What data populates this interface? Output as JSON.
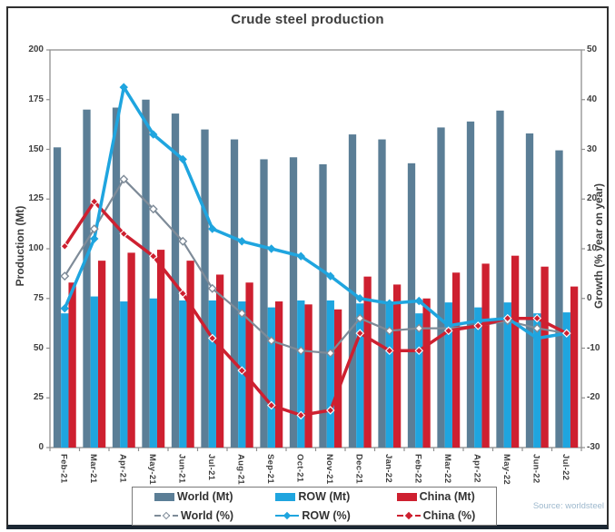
{
  "title": "Crude steel production",
  "source": "Source: worldsteel",
  "axes": {
    "left_label": "Production (Mt)",
    "right_label": "Growth (% year on year)",
    "left_min": 0,
    "left_max": 200,
    "left_step": 25,
    "right_min": -30,
    "right_max": 50,
    "right_step": 10
  },
  "colors": {
    "world": "#5b7e96",
    "row": "#1fa5df",
    "china": "#ce2030",
    "world_line": "#7e8b98",
    "frame": "#8f8f8f",
    "text": "#3f3f3f",
    "source_text": "#9db8cd"
  },
  "chart_data": {
    "type": "bar",
    "subtype": "grouped bars (left axis, Mt) + lines (right axis, % yoy)",
    "title": "Crude steel production",
    "xlabel": "",
    "ylabel": "Production (Mt)",
    "y2label": "Growth (% year on year)",
    "ylim": [
      0,
      200
    ],
    "y2lim": [
      -30,
      50
    ],
    "grid": false,
    "legend_position": "bottom",
    "categories": [
      "Feb-21",
      "Mar-21",
      "Apr-21",
      "May-21",
      "Jun-21",
      "Jul-21",
      "Aug-21",
      "Sep-21",
      "Oct-21",
      "Nov-21",
      "Dec-21",
      "Jan-22",
      "Feb-22",
      "Mar-22",
      "Apr-22",
      "May-22",
      "Jun-22",
      "Jul-22"
    ],
    "series": [
      {
        "name": "World (Mt)",
        "type": "bar",
        "axis": "left",
        "color": "#5b7e96",
        "values": [
          151,
          170,
          171,
          175,
          168,
          160,
          155,
          145,
          146,
          142.5,
          157.5,
          155,
          143,
          161,
          164,
          169.5,
          158,
          149.5
        ]
      },
      {
        "name": "ROW (Mt)",
        "type": "bar",
        "axis": "left",
        "color": "#1fa5df",
        "values": [
          67.5,
          76,
          73.5,
          75,
          74,
          74,
          73.5,
          70.5,
          74,
          74,
          72.5,
          73.5,
          67.5,
          73,
          70.5,
          73,
          67.5,
          68
        ]
      },
      {
        "name": "China (Mt)",
        "type": "bar",
        "axis": "left",
        "color": "#ce2030",
        "values": [
          83,
          94,
          98,
          99.5,
          94,
          87,
          83,
          73.5,
          72,
          69.5,
          86,
          82,
          75,
          88,
          92.5,
          96.5,
          91,
          81
        ]
      },
      {
        "name": "World (%)",
        "type": "line",
        "axis": "right",
        "color": "#7e8b98",
        "marker": "open-diamond",
        "values": [
          4.5,
          14,
          24,
          18,
          11.5,
          2,
          -3,
          -8.5,
          -10.5,
          -11,
          -4,
          -6.5,
          -6,
          -6,
          -5.5,
          -4.5,
          -6,
          -7
        ]
      },
      {
        "name": "ROW (%)",
        "type": "line",
        "axis": "right",
        "color": "#1fa5df",
        "marker": "filled-diamond",
        "values": [
          -2,
          12,
          42.5,
          33,
          28,
          14,
          11.5,
          10,
          8.5,
          4.5,
          0,
          -1,
          -0.5,
          -5.5,
          -4.5,
          -4,
          -8,
          -7
        ]
      },
      {
        "name": "China (%)",
        "type": "line",
        "axis": "right",
        "color": "#ce2030",
        "marker": "filled-diamond-white-edge",
        "values": [
          10.5,
          19.5,
          13,
          8.5,
          1,
          -8,
          -14.5,
          -21.5,
          -23.5,
          -22.5,
          -7,
          -10.5,
          -10.5,
          -6.5,
          -5.5,
          -4,
          -4,
          -7
        ]
      }
    ]
  }
}
